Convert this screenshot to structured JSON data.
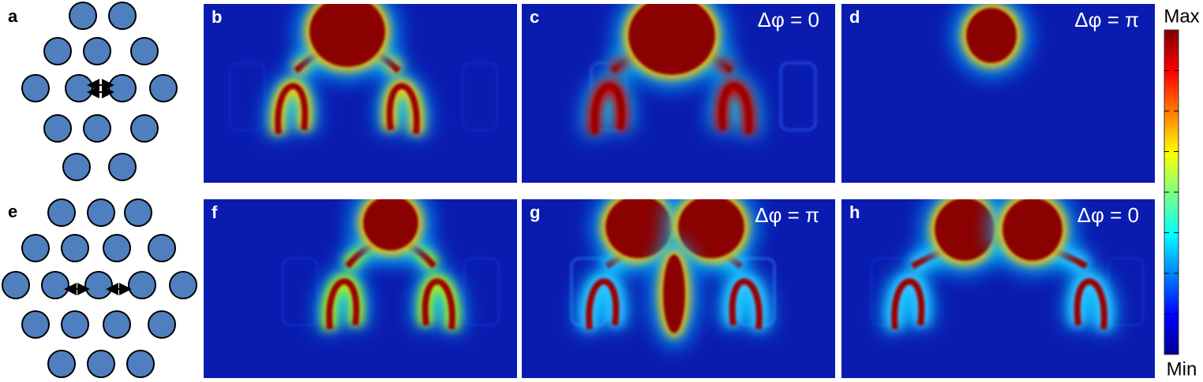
{
  "figure": {
    "panels": [
      {
        "label": "a"
      },
      {
        "label": "b"
      },
      {
        "label": "c",
        "annotation": "Δφ = 0"
      },
      {
        "label": "d",
        "annotation": "Δφ = π"
      },
      {
        "label": "e"
      },
      {
        "label": "f"
      },
      {
        "label": "g",
        "annotation": "Δφ = π"
      },
      {
        "label": "h",
        "annotation": "Δφ = 0"
      }
    ],
    "colorbar": {
      "max": "Max",
      "min": "Min"
    }
  }
}
